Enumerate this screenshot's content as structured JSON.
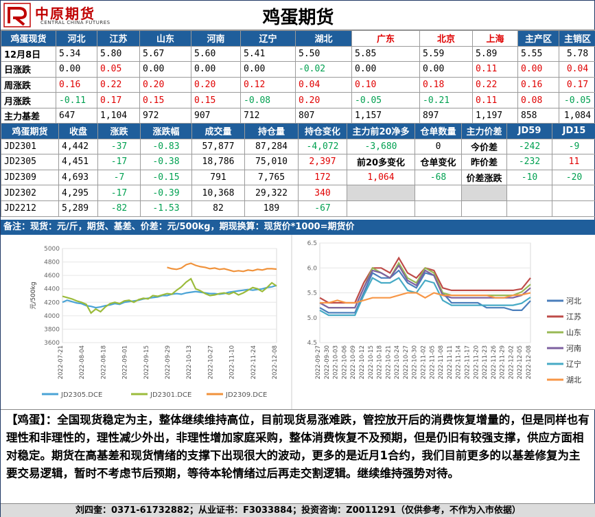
{
  "header": {
    "brand_cn": "中原期货",
    "brand_en": "CENTRAL CHINA FUTURES",
    "title": "鸡蛋期货"
  },
  "spot": {
    "corner": "鸡蛋现货",
    "regions": [
      "河北",
      "江苏",
      "山东",
      "河南",
      "辽宁",
      "湖北",
      "广东",
      "北京",
      "上海",
      "主产区",
      "主销区"
    ],
    "region_red": [
      false,
      false,
      false,
      false,
      false,
      false,
      true,
      true,
      true,
      false,
      false
    ],
    "rows": [
      {
        "label": "12月8日",
        "values": [
          "5.34",
          "5.80",
          "5.67",
          "5.60",
          "5.41",
          "5.50",
          "5.85",
          "5.59",
          "5.89",
          "5.55",
          "5.78"
        ],
        "colors": [
          "k",
          "k",
          "k",
          "k",
          "k",
          "k",
          "k",
          "k",
          "k",
          "k",
          "k"
        ]
      },
      {
        "label": "日涨跌",
        "values": [
          "0.00",
          "0.05",
          "0.00",
          "0.00",
          "0.00",
          "-0.02",
          "0.00",
          "0.00",
          "0.11",
          "0.00",
          "0.04"
        ],
        "colors": [
          "k",
          "r",
          "k",
          "k",
          "k",
          "g",
          "k",
          "k",
          "r",
          "r",
          "r"
        ]
      },
      {
        "label": "周涨跌",
        "values": [
          "0.16",
          "0.22",
          "0.20",
          "0.20",
          "0.12",
          "0.04",
          "0.10",
          "0.18",
          "0.22",
          "0.16",
          "0.17"
        ],
        "colors": [
          "r",
          "r",
          "r",
          "r",
          "r",
          "r",
          "r",
          "r",
          "r",
          "r",
          "r"
        ]
      },
      {
        "label": "月涨跌",
        "values": [
          "-0.11",
          "0.17",
          "0.15",
          "0.15",
          "-0.08",
          "0.20",
          "-0.05",
          "-0.21",
          "0.11",
          "0.08",
          "-0.05"
        ],
        "colors": [
          "g",
          "r",
          "r",
          "r",
          "g",
          "r",
          "g",
          "g",
          "r",
          "r",
          "g"
        ]
      },
      {
        "label": "主力基差",
        "values": [
          "647",
          "1,104",
          "972",
          "907",
          "712",
          "807",
          "1,157",
          "897",
          "1,197",
          "858",
          "1,084"
        ],
        "colors": [
          "k",
          "k",
          "k",
          "k",
          "k",
          "k",
          "k",
          "k",
          "k",
          "k",
          "k"
        ]
      }
    ]
  },
  "futures": {
    "headers": [
      "鸡蛋期货",
      "收盘",
      "涨跌",
      "涨跌幅",
      "成交量",
      "持仓量",
      "持仓变化",
      "主力前20净多",
      "仓单数量",
      "主力价差",
      "JD59",
      "JD15"
    ],
    "rows": [
      {
        "contract": "JD2301",
        "close": "4,442",
        "chg": "-37",
        "pct": "-0.83",
        "vol": "57,877",
        "oi": "87,284",
        "oi_chg": "-4,072",
        "oi_color": "g"
      },
      {
        "contract": "JD2305",
        "close": "4,451",
        "chg": "-17",
        "pct": "-0.38",
        "vol": "18,786",
        "oi": "75,010",
        "oi_chg": "2,397",
        "oi_color": "r"
      },
      {
        "contract": "JD2309",
        "close": "4,693",
        "chg": "-7",
        "pct": "-0.15",
        "vol": "791",
        "oi": "7,765",
        "oi_chg": "172",
        "oi_color": "r"
      },
      {
        "contract": "JD2302",
        "close": "4,295",
        "chg": "-17",
        "pct": "-0.39",
        "vol": "10,368",
        "oi": "29,322",
        "oi_chg": "340",
        "oi_color": "r"
      },
      {
        "contract": "JD2212",
        "close": "5,289",
        "chg": "-82",
        "pct": "-1.53",
        "vol": "82",
        "oi": "189",
        "oi_chg": "-67",
        "oi_color": "g"
      }
    ],
    "net_long": "-3,680",
    "net_long_change_label": "前20多变化",
    "net_long_change": "1,064",
    "warrant_qty": "0",
    "warrant_change_label": "仓单变化",
    "warrant_change": "-68",
    "spread_rows": [
      {
        "label": "今价差",
        "jd59": "-242",
        "jd15": "-9",
        "c59": "g",
        "c15": "g"
      },
      {
        "label": "昨价差",
        "jd59": "-232",
        "jd15": "11",
        "c59": "g",
        "c15": "r"
      },
      {
        "label": "价差涨跌",
        "jd59": "-10",
        "jd15": "-20",
        "c59": "g",
        "c15": "g"
      }
    ]
  },
  "note": "备注：现货：元/斤，期货、基差、价差：元/500kg，期现换算：现货价*1000=期货价",
  "chart_data": [
    {
      "type": "line",
      "ylabel": "元/500kg",
      "ylim": [
        3600,
        5000
      ],
      "yticks": [
        3600,
        3800,
        4000,
        4200,
        4400,
        4600,
        4800,
        5000
      ],
      "x_labels": [
        "2022-07-21",
        "2022-08-04",
        "2022-08-18",
        "2022-09-01",
        "2022-09-15",
        "2022-09-29",
        "2022-10-13",
        "2022-10-27",
        "2022-11-10",
        "2022-11-24",
        "2022-12-08"
      ],
      "legend_position": "bottom",
      "series": [
        {
          "name": "JD2305.DCE",
          "color": "#4aa3d6",
          "values": [
            4200,
            4230,
            4210,
            4190,
            4180,
            4150,
            4140,
            4120,
            4130,
            4150,
            4160,
            4180,
            4170,
            4200,
            4210,
            4220,
            4230,
            4250,
            4260,
            4270,
            4280,
            4300,
            4300,
            4320,
            4330,
            4320,
            4340,
            4350,
            4360,
            4350,
            4340,
            4330,
            4330,
            4320,
            4330,
            4350,
            4360,
            4370,
            4380,
            4390,
            4380,
            4390,
            4400,
            4420,
            4430,
            4451
          ]
        },
        {
          "name": "JD2301.DCE",
          "color": "#9bbb3b",
          "values": [
            4290,
            4270,
            4250,
            4220,
            4200,
            4170,
            4040,
            4100,
            4060,
            4130,
            4180,
            4200,
            4180,
            4220,
            4230,
            4200,
            4240,
            4260,
            4250,
            4300,
            4290,
            4310,
            4330,
            4320,
            4380,
            4430,
            4500,
            4550,
            4400,
            4370,
            4330,
            4300,
            4310,
            4330,
            4340,
            4320,
            4350,
            4310,
            4340,
            4380,
            4420,
            4400,
            4360,
            4420,
            4490,
            4442
          ]
        },
        {
          "name": "JD2309.DCE",
          "color": "#f0923b",
          "values": [
            null,
            null,
            null,
            null,
            null,
            null,
            null,
            null,
            null,
            null,
            null,
            null,
            null,
            null,
            null,
            null,
            null,
            null,
            null,
            null,
            null,
            null,
            4720,
            4700,
            4690,
            4710,
            4760,
            4780,
            4750,
            4730,
            4720,
            4700,
            4710,
            4690,
            4700,
            4680,
            4660,
            4670,
            4660,
            4680,
            4670,
            4690,
            4680,
            4700,
            4700,
            4693
          ]
        }
      ]
    },
    {
      "type": "line",
      "ylim": [
        4.5,
        6.5
      ],
      "yticks": [
        4.5,
        5.0,
        5.5,
        6.0,
        6.5
      ],
      "x_labels": [
        "2022-09-27",
        "2022-09-30",
        "2022-10-03",
        "2022-10-06",
        "2022-10-09",
        "2022-10-12",
        "2022-10-15",
        "2022-10-18",
        "2022-10-21",
        "2022-10-24",
        "2022-10-27",
        "2022-10-30",
        "2022-11-02",
        "2022-11-05",
        "2022-11-08",
        "2022-11-11",
        "2022-11-14",
        "2022-11-17",
        "2022-11-20",
        "2022-11-23",
        "2022-11-26",
        "2022-11-29",
        "2022-12-02",
        "2022-12-05",
        "2022-12-08"
      ],
      "legend_position": "right",
      "series": [
        {
          "name": "河北",
          "color": "#4a7ebb",
          "values": [
            5.2,
            5.1,
            5.1,
            5.1,
            5.1,
            5.5,
            5.9,
            5.8,
            5.8,
            5.95,
            5.7,
            5.6,
            5.9,
            5.85,
            5.5,
            5.3,
            5.3,
            5.3,
            5.3,
            5.2,
            5.2,
            5.2,
            5.15,
            5.15,
            5.34
          ]
        },
        {
          "name": "江苏",
          "color": "#be4b48",
          "values": [
            5.4,
            5.3,
            5.3,
            5.3,
            5.3,
            5.7,
            6.0,
            6.0,
            5.9,
            6.2,
            5.9,
            5.8,
            6.0,
            5.95,
            5.6,
            5.55,
            5.55,
            5.55,
            5.55,
            5.55,
            5.55,
            5.55,
            5.55,
            5.58,
            5.8
          ]
        },
        {
          "name": "山东",
          "color": "#98b954",
          "values": [
            5.3,
            5.2,
            5.2,
            5.2,
            5.2,
            5.6,
            6.0,
            5.9,
            5.8,
            6.1,
            5.8,
            5.7,
            6.0,
            5.9,
            5.5,
            5.45,
            5.45,
            5.45,
            5.45,
            5.45,
            5.45,
            5.45,
            5.45,
            5.52,
            5.67
          ]
        },
        {
          "name": "河南",
          "color": "#7d60a0",
          "values": [
            5.3,
            5.2,
            5.2,
            5.2,
            5.2,
            5.6,
            5.95,
            5.9,
            5.8,
            6.05,
            5.75,
            5.65,
            5.95,
            5.85,
            5.45,
            5.4,
            5.4,
            5.4,
            5.4,
            5.4,
            5.4,
            5.4,
            5.4,
            5.45,
            5.6
          ]
        },
        {
          "name": "辽宁",
          "color": "#46aac5",
          "values": [
            5.15,
            5.05,
            5.05,
            5.05,
            5.05,
            5.45,
            5.8,
            5.7,
            5.7,
            5.8,
            5.55,
            5.5,
            5.75,
            5.7,
            5.35,
            5.25,
            5.25,
            5.25,
            5.25,
            5.25,
            5.25,
            5.25,
            5.25,
            5.29,
            5.41
          ]
        },
        {
          "name": "湖北",
          "color": "#f79646",
          "values": [
            5.3,
            5.3,
            5.35,
            5.3,
            5.3,
            5.35,
            5.4,
            5.4,
            5.4,
            5.45,
            5.5,
            5.5,
            5.4,
            5.5,
            5.45,
            5.45,
            5.45,
            5.45,
            5.45,
            5.45,
            5.4,
            5.4,
            5.45,
            5.46,
            5.5
          ]
        }
      ]
    }
  ],
  "comment": "【鸡蛋】：全国现货稳定为主，整体继续维持高位，目前现货易涨难跌，管控放开后的消费恢复增量的，但是同样也有理性和非理性的，理性减少外出，非理性增加家庭采购，整体消费恢复不及预期，但是仍旧有较强支撑，供应方面相对稳定。期货在高基差和现货情绪的支撑下出现很大的波动，更多的是近月1合约，我们目前更多的以基差修复为主要交易逻辑，暂时不考虑节后预期，等待本轮情绪过后再走交割逻辑。继续维持强势对待。",
  "footer": "刘四奎：0371-61732882；从业证书：F3033884；投资咨询：Z0011291（仅供参考，不作为入市依据）",
  "colors": {
    "header_blue": "#1f5e9b",
    "up_red": "#e00000",
    "down_green": "#00a050",
    "brand_red": "#c00000"
  }
}
